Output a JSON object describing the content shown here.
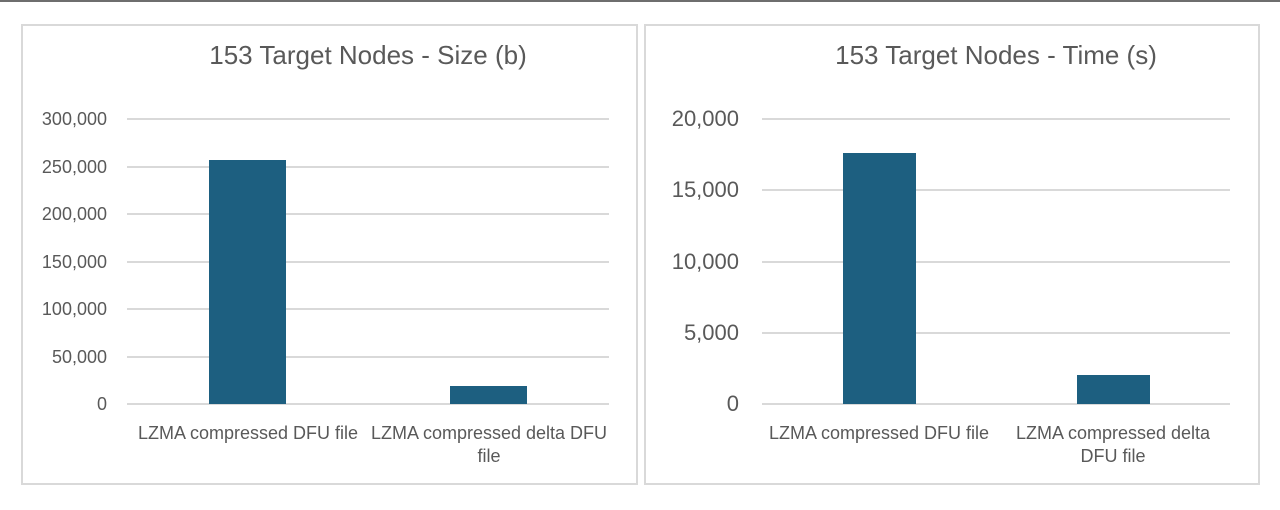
{
  "page": {
    "background": "#ffffff",
    "top_rule_color": "#6e6e6e",
    "panel_border_color": "#d9d9d9"
  },
  "chart_data": [
    {
      "type": "bar",
      "title": "153 Target Nodes - Size (b)",
      "categories": [
        "LZMA compressed DFU file",
        "LZMA compressed delta DFU file"
      ],
      "values": [
        257000,
        19000
      ],
      "xlabel": "",
      "ylabel": "",
      "ylim": [
        0,
        300000
      ],
      "y_tick_labels": [
        "300,000",
        "250,000",
        "200,000",
        "150,000",
        "100,000",
        "50,000",
        "0"
      ],
      "legend": "none",
      "grid": "horizontal",
      "bar_color": "#1d5f80",
      "title_color": "#595959",
      "label_color": "#595959",
      "gridline_color": "#d9d9d9"
    },
    {
      "type": "bar",
      "title": "153 Target Nodes - Time (s)",
      "categories": [
        "LZMA compressed DFU file",
        "LZMA compressed delta DFU file"
      ],
      "values": [
        17600,
        2000
      ],
      "xlabel": "",
      "ylabel": "",
      "ylim": [
        0,
        20000
      ],
      "y_tick_labels": [
        "20,000",
        "15,000",
        "10,000",
        "5,000",
        "0"
      ],
      "legend": "none",
      "grid": "horizontal",
      "bar_color": "#1d5f80",
      "title_color": "#595959",
      "label_color": "#595959",
      "gridline_color": "#d9d9d9"
    }
  ]
}
